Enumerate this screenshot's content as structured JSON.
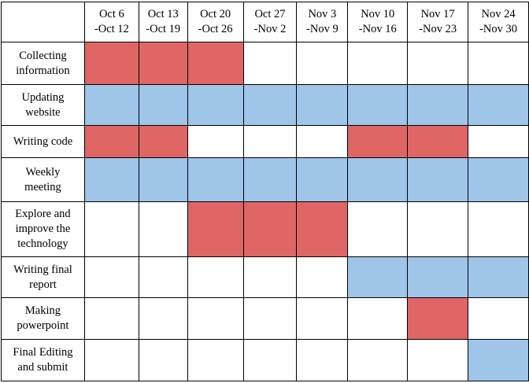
{
  "columns": [
    "Oct 6\n-Oct 12",
    "Oct 13\n-Oct 19",
    "Oct 20\n-Oct 26",
    "Oct 27\n-Nov 2",
    "Nov 3\n-Nov 9",
    "Nov 10\n-Nov 16",
    "Nov 17\n-Nov 23",
    "Nov 24\n-Nov 30"
  ],
  "colors": {
    "red": "#e06666",
    "blue": "#9fc5e8",
    "empty": "#ffffff"
  },
  "tasks": [
    {
      "label": "Collecting\ninformation",
      "cells": [
        "red",
        "red",
        "red",
        "",
        "",
        "",
        "",
        ""
      ]
    },
    {
      "label": "Updating\nwebsite",
      "cells": [
        "blue",
        "blue",
        "blue",
        "blue",
        "blue",
        "blue",
        "blue",
        "blue"
      ]
    },
    {
      "label": "Writing code",
      "cells": [
        "red",
        "red",
        "",
        "",
        "",
        "red",
        "red",
        ""
      ]
    },
    {
      "label": "Weekly\nmeeting",
      "cells": [
        "blue",
        "blue",
        "blue",
        "blue",
        "blue",
        "blue",
        "blue",
        "blue"
      ]
    },
    {
      "label": "Explore and\nimprove the\ntechnology",
      "cells": [
        "",
        "",
        "red",
        "red",
        "red",
        "",
        "",
        ""
      ]
    },
    {
      "label": "Writing final\nreport",
      "cells": [
        "",
        "",
        "",
        "",
        "",
        "blue",
        "blue",
        "blue"
      ]
    },
    {
      "label": "Making\npowerpoint",
      "cells": [
        "",
        "",
        "",
        "",
        "",
        "",
        "red",
        ""
      ]
    },
    {
      "label": "Final Editing\nand submit",
      "cells": [
        "",
        "",
        "",
        "",
        "",
        "",
        "",
        "blue"
      ]
    }
  ]
}
